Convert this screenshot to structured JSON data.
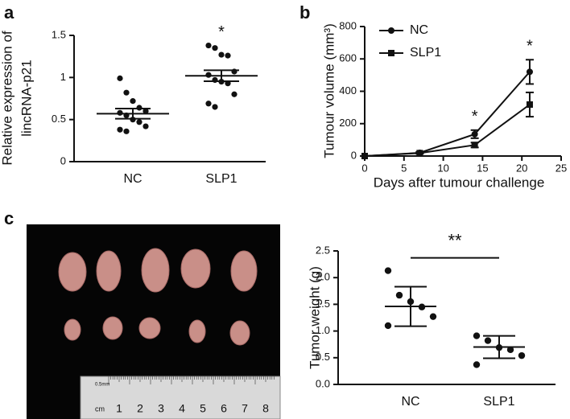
{
  "chart_data": [
    {
      "type": "dot",
      "panel": "a",
      "ylabel": [
        "Relative expression of",
        "lincRNA-p21"
      ],
      "categories": [
        "NC",
        "SLP1"
      ],
      "groups": [
        [
          0.99,
          0.82,
          0.72,
          0.64,
          0.6,
          0.58,
          0.55,
          0.5,
          0.47,
          0.42,
          0.38,
          0.36
        ],
        [
          1.38,
          1.35,
          1.27,
          1.26,
          1.07,
          1.03,
          0.97,
          0.95,
          0.93,
          0.8,
          0.69,
          0.65
        ]
      ],
      "means": [
        0.57,
        1.02
      ],
      "errors": [
        0.06,
        0.065
      ],
      "ylim": [
        0,
        1.5
      ],
      "yticks": [
        0,
        0.5,
        1,
        1.5
      ],
      "annotations": [
        {
          "text": "*",
          "category": 1
        }
      ]
    },
    {
      "type": "line",
      "panel": "b",
      "xlabel": "Days after tumour challenge",
      "ylabel": "Tumour volume (mm³)",
      "x": [
        0,
        7,
        14,
        21
      ],
      "series": [
        {
          "name": "NC",
          "marker": "circle",
          "values": [
            0,
            20,
            135,
            520
          ],
          "errors": [
            0,
            5,
            25,
            75
          ]
        },
        {
          "name": "SLP1",
          "marker": "square",
          "values": [
            0,
            18,
            68,
            318
          ],
          "errors": [
            0,
            4,
            15,
            75
          ]
        }
      ],
      "xlim": [
        0,
        25
      ],
      "xticks": [
        0,
        5,
        10,
        15,
        20,
        25
      ],
      "ylim": [
        0,
        800
      ],
      "yticks": [
        0,
        200,
        400,
        600,
        800
      ],
      "legend": "upper left",
      "annotations": [
        {
          "text": "*",
          "x": 14
        },
        {
          "text": "*",
          "x": 21
        }
      ]
    },
    {
      "type": "dot",
      "panel": "c",
      "ylabel": "Tumor weight (g)",
      "categories": [
        "NC",
        "SLP1"
      ],
      "groups": [
        [
          2.13,
          1.67,
          1.55,
          1.45,
          1.27,
          1.1
        ],
        [
          0.91,
          0.82,
          0.69,
          0.65,
          0.54,
          0.37
        ]
      ],
      "means": [
        1.46,
        0.7
      ],
      "errors": [
        0.37,
        0.21
      ],
      "ylim": [
        0,
        2.5
      ],
      "yticks": [
        {
          "value": 0,
          "label": "0.0"
        },
        0.5,
        {
          "value": 1,
          "label": "1.0"
        },
        1.5,
        {
          "value": 2,
          "label": "2.0"
        },
        2.5
      ],
      "annotations": [
        {
          "text": "**",
          "from": 0,
          "to": 1
        }
      ]
    }
  ],
  "photo": {
    "ruler_unit": "cm",
    "ruler_small": "0.5mm",
    "ruler_labels": [
      "1",
      "2",
      "3",
      "4",
      "5",
      "6",
      "7",
      "8"
    ]
  }
}
